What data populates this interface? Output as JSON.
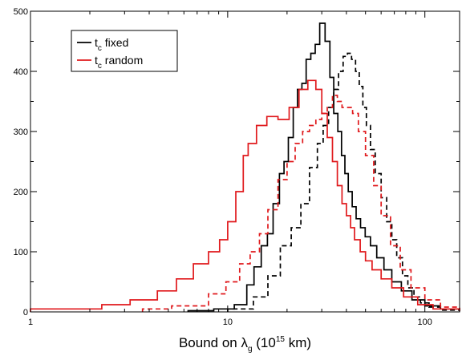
{
  "chart_data": {
    "type": "line",
    "xscale": "log",
    "xlim": [
      1,
      150
    ],
    "ylim": [
      0,
      500
    ],
    "xticks": [
      1,
      10,
      100
    ],
    "xtick_labels": [
      "1",
      "10",
      "100"
    ],
    "yticks": [
      0,
      100,
      200,
      300,
      400,
      500
    ],
    "ytick_labels": [
      "0",
      "100",
      "200",
      "300",
      "400",
      "500"
    ],
    "xlabel": {
      "prefix": "Bound on λ",
      "sub": "g",
      "mid": " (10",
      "sup": "15",
      "suffix": " km)"
    },
    "grid": false,
    "legend": {
      "placement": "top-left",
      "entries": [
        {
          "main": "t",
          "sub": "c",
          "rest": " fixed",
          "color": "#000000"
        },
        {
          "main": "t",
          "sub": "c",
          "rest": " random",
          "color": "#e0191c"
        }
      ]
    },
    "series": [
      {
        "color": "#000000",
        "style": "solid",
        "x": [
          6.3,
          8.5,
          10.8,
          12.5,
          13.6,
          14.8,
          15.9,
          17.0,
          18.3,
          19.3,
          20.3,
          21.5,
          22.6,
          23.8,
          25.0,
          26.4,
          27.8,
          29.3,
          31.2,
          33.0,
          34.5,
          36.2,
          37.8,
          39.3,
          40.9,
          42.8,
          44.8,
          47.2,
          49.8,
          53.0,
          57.0,
          62.0,
          68.0,
          76.0,
          86.0,
          100.0,
          120.0,
          150.0
        ],
        "y": [
          2,
          5,
          12,
          45,
          75,
          110,
          130,
          180,
          230,
          250,
          290,
          340,
          370,
          380,
          420,
          430,
          445,
          480,
          450,
          390,
          330,
          300,
          260,
          230,
          200,
          175,
          155,
          140,
          125,
          110,
          90,
          70,
          50,
          35,
          20,
          10,
          5,
          2
        ]
      },
      {
        "color": "#000000",
        "style": "dashed",
        "x": [
          10.0,
          13.5,
          16.0,
          18.5,
          21.0,
          23.5,
          26.0,
          28.5,
          30.5,
          32.5,
          34.5,
          36.5,
          38.5,
          40.5,
          42.5,
          44.5,
          46.5,
          48.5,
          50.5,
          53.0,
          56.0,
          60.0,
          64.0,
          68.0,
          72.0,
          77.0,
          82.0,
          88.0,
          95.0,
          105.0,
          120.0,
          150.0
        ],
        "y": [
          5,
          25,
          60,
          110,
          140,
          180,
          240,
          280,
          310,
          340,
          370,
          400,
          425,
          430,
          420,
          400,
          375,
          340,
          310,
          270,
          230,
          190,
          150,
          120,
          90,
          60,
          40,
          25,
          15,
          8,
          3,
          1
        ]
      },
      {
        "color": "#e0191c",
        "style": "solid",
        "x": [
          1.0,
          2.3,
          3.2,
          4.4,
          5.5,
          6.7,
          8.0,
          9.1,
          10.0,
          11.0,
          12.0,
          12.7,
          14.0,
          15.8,
          18.0,
          20.5,
          23.0,
          25.5,
          28.0,
          30.0,
          32.0,
          34.0,
          36.0,
          38.0,
          40.0,
          42.0,
          44.0,
          47.0,
          50.0,
          54.0,
          60.0,
          68.0,
          78.0,
          92.0,
          110.0,
          150.0
        ],
        "y": [
          5,
          12,
          20,
          35,
          55,
          80,
          100,
          120,
          150,
          200,
          260,
          280,
          310,
          325,
          320,
          340,
          370,
          385,
          370,
          330,
          290,
          250,
          210,
          180,
          160,
          140,
          120,
          100,
          85,
          70,
          55,
          40,
          25,
          12,
          5,
          2
        ]
      },
      {
        "color": "#e0191c",
        "style": "dashed",
        "x": [
          3.7,
          5.2,
          8.0,
          9.8,
          11.5,
          13.0,
          14.5,
          16.0,
          18.0,
          20.0,
          22.0,
          24.0,
          26.0,
          28.0,
          30.0,
          32.0,
          34.0,
          36.0,
          38.0,
          40.0,
          43.0,
          46.0,
          50.0,
          55.0,
          60.0,
          67.0,
          75.0,
          85.0,
          100.0,
          120.0,
          150.0
        ],
        "y": [
          5,
          10,
          30,
          50,
          80,
          100,
          130,
          170,
          220,
          250,
          280,
          300,
          310,
          320,
          330,
          340,
          360,
          350,
          340,
          340,
          330,
          300,
          260,
          210,
          160,
          110,
          70,
          40,
          20,
          8,
          3
        ]
      }
    ]
  }
}
